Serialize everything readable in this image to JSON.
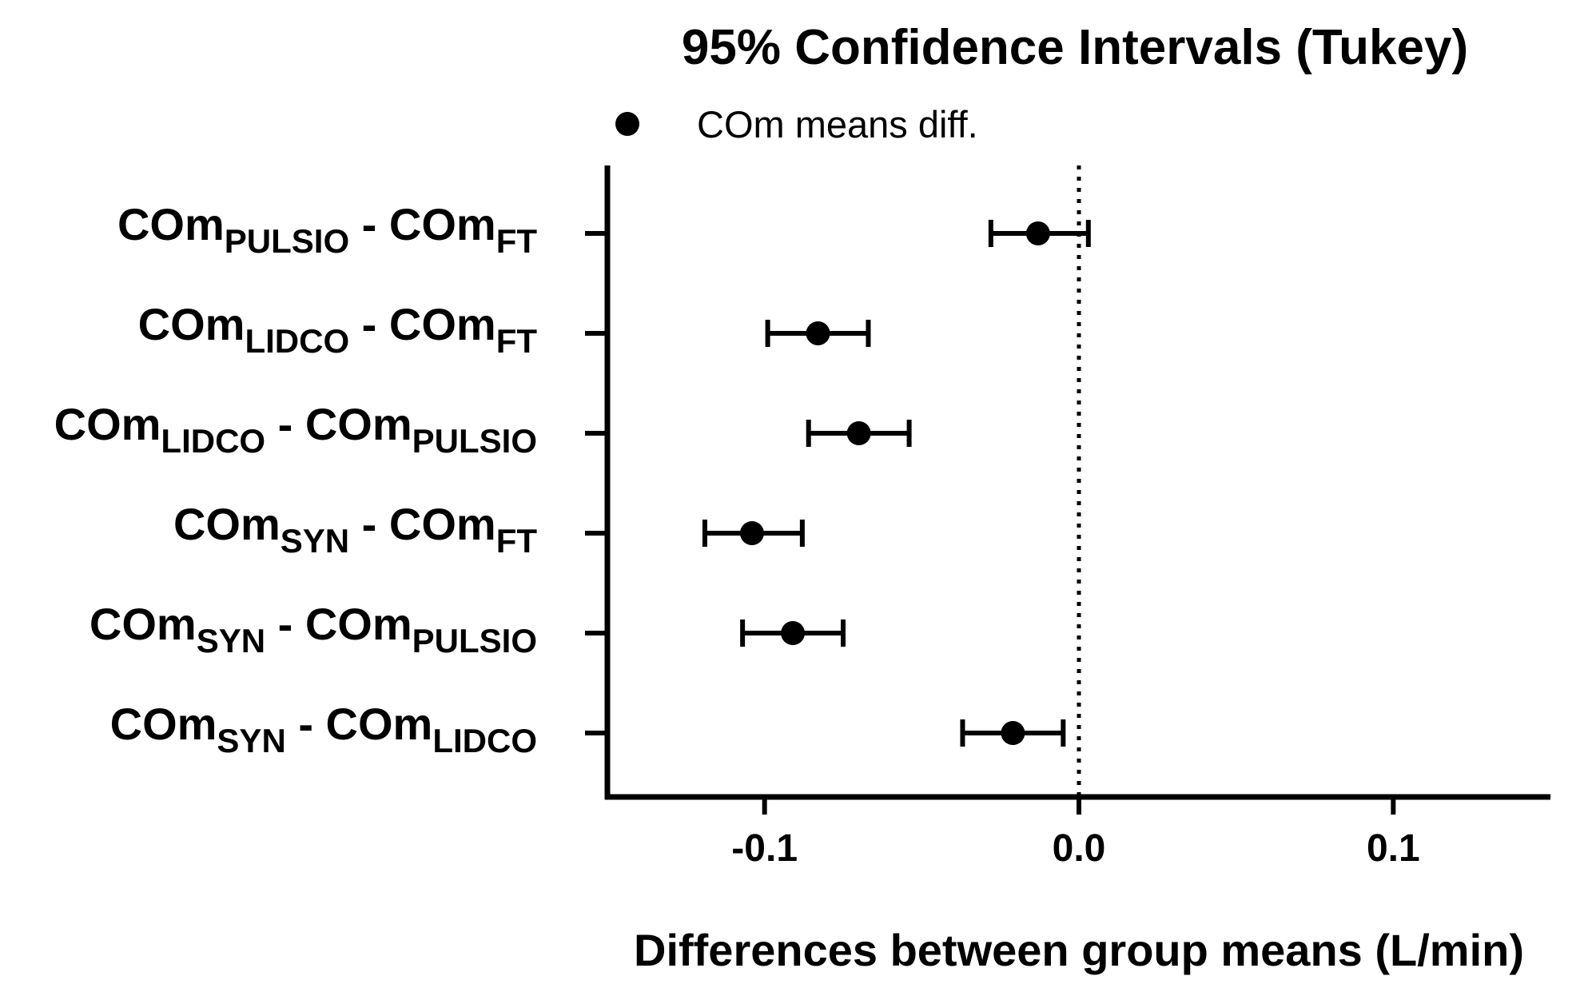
{
  "chart_data": {
    "type": "scatter",
    "subtype": "forest-plot-confidence-intervals",
    "title": "95% Confidence Intervals (Tukey)",
    "legend": {
      "marker": "filled-circle",
      "label": "COm means diff.",
      "position": "top-left"
    },
    "xlabel": "Differences between group means (L/min)",
    "xlim": [
      -0.15,
      0.15
    ],
    "xticks": [
      -0.1,
      0.0,
      0.1
    ],
    "xtick_labels": [
      "-0.1",
      "0.0",
      "0.1"
    ],
    "reference_line": {
      "x": 0.0,
      "style": "dotted"
    },
    "rows": [
      {
        "label": [
          {
            "t": "COm"
          },
          {
            "t": "PULSIO",
            "sub": true
          },
          {
            "t": " - COm"
          },
          {
            "t": "FT",
            "sub": true
          }
        ],
        "mean": -0.013,
        "lower": -0.028,
        "upper": 0.003
      },
      {
        "label": [
          {
            "t": "COm"
          },
          {
            "t": "LIDCO",
            "sub": true
          },
          {
            "t": " - COm"
          },
          {
            "t": "FT",
            "sub": true
          }
        ],
        "mean": -0.083,
        "lower": -0.099,
        "upper": -0.067
      },
      {
        "label": [
          {
            "t": "COm"
          },
          {
            "t": "LIDCO",
            "sub": true
          },
          {
            "t": " - COm"
          },
          {
            "t": "PULSIO",
            "sub": true
          }
        ],
        "mean": -0.07,
        "lower": -0.086,
        "upper": -0.054
      },
      {
        "label": [
          {
            "t": "COm"
          },
          {
            "t": "SYN",
            "sub": true
          },
          {
            "t": " - COm"
          },
          {
            "t": "FT",
            "sub": true
          }
        ],
        "mean": -0.104,
        "lower": -0.119,
        "upper": -0.088
      },
      {
        "label": [
          {
            "t": "COm"
          },
          {
            "t": "SYN",
            "sub": true
          },
          {
            "t": " - COm"
          },
          {
            "t": "PULSIO",
            "sub": true
          }
        ],
        "mean": -0.091,
        "lower": -0.107,
        "upper": -0.075
      },
      {
        "label": [
          {
            "t": "COm"
          },
          {
            "t": "SYN",
            "sub": true
          },
          {
            "t": " - COm"
          },
          {
            "t": "LIDCO",
            "sub": true
          }
        ],
        "mean": -0.021,
        "lower": -0.037,
        "upper": -0.005
      }
    ],
    "color": "#000000"
  }
}
